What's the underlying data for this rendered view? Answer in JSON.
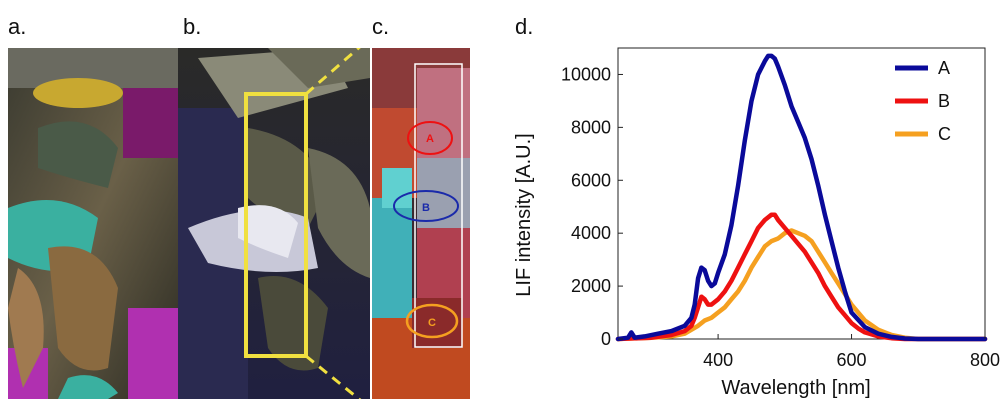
{
  "panels": [
    {
      "label": "a."
    },
    {
      "label": "b."
    },
    {
      "label": "c.",
      "roi_labels": [
        "A",
        "B",
        "C"
      ]
    },
    {
      "label": "d."
    }
  ],
  "colors": {
    "A": "#0a0a9a",
    "B": "#ee1111",
    "C": "#f5a020",
    "roi_box": "#f0e040"
  },
  "chart_data": {
    "type": "line",
    "title": "",
    "xlabel": "Wavelength [nm]",
    "ylabel": "LIF intensity [A.U.]",
    "xlim": [
      250,
      800
    ],
    "ylim": [
      0,
      11000
    ],
    "xticks": [
      400,
      600,
      800
    ],
    "yticks": [
      0,
      2000,
      4000,
      6000,
      8000,
      10000
    ],
    "legend_position": "top-right",
    "series": [
      {
        "name": "A",
        "color": "#0a0a9a",
        "x": [
          250,
          265,
          270,
          275,
          290,
          310,
          330,
          350,
          360,
          365,
          370,
          375,
          380,
          385,
          390,
          395,
          400,
          410,
          420,
          430,
          440,
          450,
          460,
          470,
          475,
          480,
          485,
          490,
          500,
          510,
          520,
          530,
          540,
          550,
          560,
          570,
          580,
          590,
          600,
          620,
          640,
          660,
          680,
          700,
          720,
          750,
          800
        ],
        "y": [
          0,
          50,
          250,
          50,
          100,
          200,
          300,
          500,
          800,
          1300,
          2300,
          2700,
          2600,
          2200,
          2000,
          2100,
          2500,
          3200,
          4300,
          5800,
          7500,
          9000,
          10000,
          10500,
          10700,
          10700,
          10600,
          10300,
          9600,
          8800,
          8200,
          7600,
          6800,
          5800,
          4700,
          3700,
          2700,
          1800,
          1000,
          450,
          200,
          80,
          20,
          0,
          0,
          0,
          0
        ]
      },
      {
        "name": "B",
        "color": "#ee1111",
        "x": [
          250,
          300,
          330,
          350,
          360,
          365,
          370,
          375,
          380,
          385,
          390,
          400,
          410,
          420,
          430,
          440,
          450,
          460,
          470,
          480,
          485,
          490,
          500,
          510,
          520,
          530,
          540,
          550,
          560,
          570,
          580,
          590,
          600,
          610,
          620,
          640,
          660,
          680,
          700,
          800
        ],
        "y": [
          0,
          50,
          150,
          300,
          500,
          800,
          1200,
          1600,
          1500,
          1300,
          1300,
          1500,
          1800,
          2200,
          2700,
          3200,
          3700,
          4200,
          4500,
          4700,
          4700,
          4500,
          4200,
          3900,
          3600,
          3300,
          2900,
          2500,
          2000,
          1600,
          1200,
          900,
          600,
          400,
          250,
          100,
          30,
          0,
          0,
          0
        ]
      },
      {
        "name": "C",
        "color": "#f5a020",
        "x": [
          250,
          300,
          330,
          350,
          370,
          380,
          390,
          400,
          410,
          420,
          430,
          440,
          450,
          460,
          470,
          480,
          490,
          500,
          510,
          520,
          530,
          540,
          550,
          560,
          570,
          580,
          590,
          600,
          620,
          640,
          660,
          680,
          700,
          720,
          800
        ],
        "y": [
          0,
          50,
          100,
          200,
          500,
          700,
          800,
          1000,
          1200,
          1500,
          1800,
          2200,
          2700,
          3100,
          3500,
          3700,
          3800,
          4000,
          4100,
          4000,
          3900,
          3700,
          3300,
          2900,
          2500,
          2100,
          1700,
          1300,
          700,
          350,
          150,
          50,
          0,
          0,
          0
        ]
      }
    ]
  }
}
